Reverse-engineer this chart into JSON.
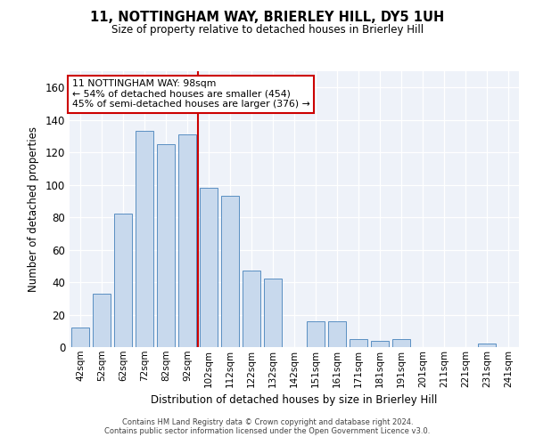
{
  "title": "11, NOTTINGHAM WAY, BRIERLEY HILL, DY5 1UH",
  "subtitle": "Size of property relative to detached houses in Brierley Hill",
  "xlabel": "Distribution of detached houses by size in Brierley Hill",
  "ylabel": "Number of detached properties",
  "bar_color": "#c8d9ed",
  "bar_edge_color": "#5a8fc2",
  "categories": [
    "42sqm",
    "52sqm",
    "62sqm",
    "72sqm",
    "82sqm",
    "92sqm",
    "102sqm",
    "112sqm",
    "122sqm",
    "132sqm",
    "142sqm",
    "151sqm",
    "161sqm",
    "171sqm",
    "181sqm",
    "191sqm",
    "201sqm",
    "211sqm",
    "221sqm",
    "231sqm",
    "241sqm"
  ],
  "values": [
    12,
    33,
    82,
    133,
    125,
    131,
    98,
    93,
    47,
    42,
    0,
    16,
    16,
    5,
    4,
    5,
    0,
    0,
    0,
    2,
    0
  ],
  "ylim": [
    0,
    170
  ],
  "yticks": [
    0,
    20,
    40,
    60,
    80,
    100,
    120,
    140,
    160
  ],
  "vline_x": 5.5,
  "annotation_text": "11 NOTTINGHAM WAY: 98sqm\n← 54% of detached houses are smaller (454)\n45% of semi-detached houses are larger (376) →",
  "annotation_box_color": "#ffffff",
  "annotation_box_edge_color": "#cc0000",
  "vline_color": "#cc0000",
  "footer": "Contains HM Land Registry data © Crown copyright and database right 2024.\nContains public sector information licensed under the Open Government Licence v3.0.",
  "background_color": "#eef2f9"
}
